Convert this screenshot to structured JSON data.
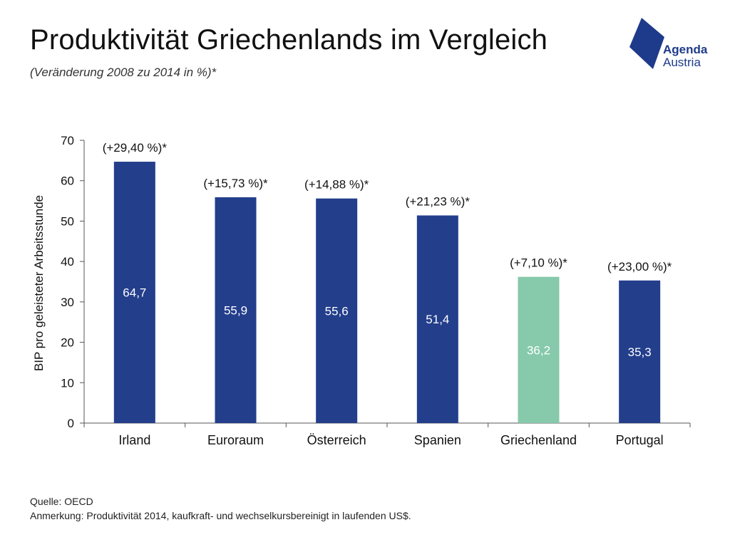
{
  "header": {
    "title": "Produktivität Griechenlands im Vergleich",
    "subtitle": "(Veränderung 2008 zu 2014 in %)*"
  },
  "logo": {
    "line1": "Agenda",
    "line2": "Austria",
    "color": "#1e3a8a"
  },
  "footer": {
    "source": "Quelle: OECD",
    "note": "Anmerkung: Produktivität 2014, kaufkraft- und wechselkursbereinigt in laufenden US$."
  },
  "chart_data": {
    "type": "bar",
    "ylabel": "BIP pro geleisteter Arbeitsstunde",
    "ylim": [
      0,
      70
    ],
    "yticks": [
      0,
      10,
      20,
      30,
      40,
      50,
      60,
      70
    ],
    "categories": [
      "Irland",
      "Euroraum",
      "Österreich",
      "Spanien",
      "Griechenland",
      "Portugal"
    ],
    "values": [
      64.7,
      55.9,
      55.6,
      51.4,
      36.2,
      35.3
    ],
    "value_labels": [
      "64,7",
      "55,9",
      "55,6",
      "51,4",
      "36,2",
      "35,3"
    ],
    "change_labels": [
      "(+29,40 %)*",
      "(+15,73 %)*",
      "(+14,88 %)*",
      "(+21,23 %)*",
      "(+7,10 %)*",
      "(+23,00 %)*"
    ],
    "colors": [
      "#233e8b",
      "#233e8b",
      "#233e8b",
      "#233e8b",
      "#86c9ab",
      "#233e8b"
    ],
    "grid": false
  }
}
